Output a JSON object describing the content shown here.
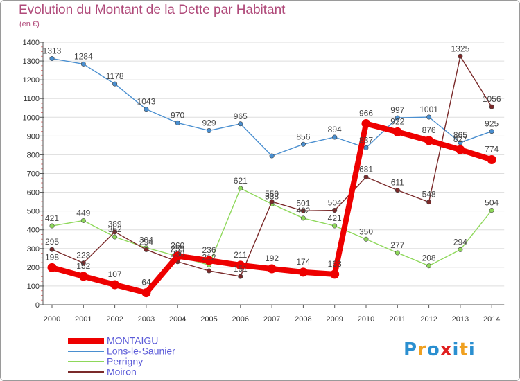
{
  "colors": {
    "title": "#b04a7a",
    "axis": "#555555",
    "grid": "#dddddd",
    "tick_minor": "#e08080"
  },
  "logo": {
    "letters": [
      "P",
      "r",
      "o",
      "x",
      "i",
      "t",
      "i"
    ],
    "colors": [
      "#2a8fd0",
      "#f0a020",
      "#2a8fd0",
      "#e02020",
      "#2a8fd0",
      "#f0a020",
      "#2a8fd0"
    ]
  },
  "chart_data": {
    "type": "line",
    "title": "Evolution du Montant de la Dette par Habitant",
    "subtitle": "(en €)",
    "xlabel": "",
    "ylabel": "",
    "x": [
      "2000",
      "2001",
      "2002",
      "2003",
      "2004",
      "2005",
      "2006",
      "2007",
      "2008",
      "2009",
      "2010",
      "2011",
      "2012",
      "2013",
      "2014"
    ],
    "ylim": [
      0,
      1400
    ],
    "yticks": [
      "0",
      "100",
      "200",
      "300",
      "400",
      "500",
      "600",
      "700",
      "800",
      "900",
      "1000",
      "1100",
      "1200",
      "1300",
      "1400"
    ],
    "grid": "horizontal",
    "legend_position": "bottom-left",
    "series": [
      {
        "name": "Lons-le-Saunier",
        "color": "#4a8fd0",
        "values": [
          1313,
          1284,
          1178,
          1043,
          970,
          929,
          965,
          794,
          856,
          894,
          837,
          997,
          1001,
          865,
          925
        ],
        "labels": [
          "1313",
          "1284",
          "1178",
          "1043",
          "970",
          "929",
          "965",
          "",
          "856",
          "894",
          "837",
          "997",
          "1001",
          "865",
          "925"
        ]
      },
      {
        "name": "Perrigny",
        "color": "#8ed85a",
        "values": [
          421,
          449,
          362,
          304,
          259,
          212,
          621,
          538,
          462,
          421,
          350,
          277,
          208,
          294,
          504
        ],
        "labels": [
          "421",
          "449",
          "362",
          "304",
          "259",
          "212",
          "621",
          "538",
          "462",
          "421",
          "350",
          "277",
          "208",
          "294",
          "504"
        ]
      },
      {
        "name": "Moiron",
        "color": "#7a2a2a",
        "values": [
          295,
          223,
          389,
          294,
          230,
          181,
          151,
          550,
          501,
          504,
          681,
          611,
          548,
          1325,
          1056
        ],
        "labels": [
          "295",
          "223",
          "389",
          "294",
          "230",
          "",
          "151",
          "550",
          "501",
          "504",
          "681",
          "611",
          "548",
          "1325",
          "1056"
        ]
      },
      {
        "name": "MONTAIGU",
        "color": "#ee0000",
        "values": [
          198,
          152,
          107,
          64,
          260,
          236,
          211,
          192,
          174,
          163,
          966,
          922,
          876,
          827,
          774
        ],
        "labels": [
          "198",
          "152",
          "107",
          "64",
          "260",
          "236",
          "211",
          "192",
          "174",
          "163",
          "966",
          "922",
          "876",
          "827",
          "774"
        ]
      }
    ]
  }
}
